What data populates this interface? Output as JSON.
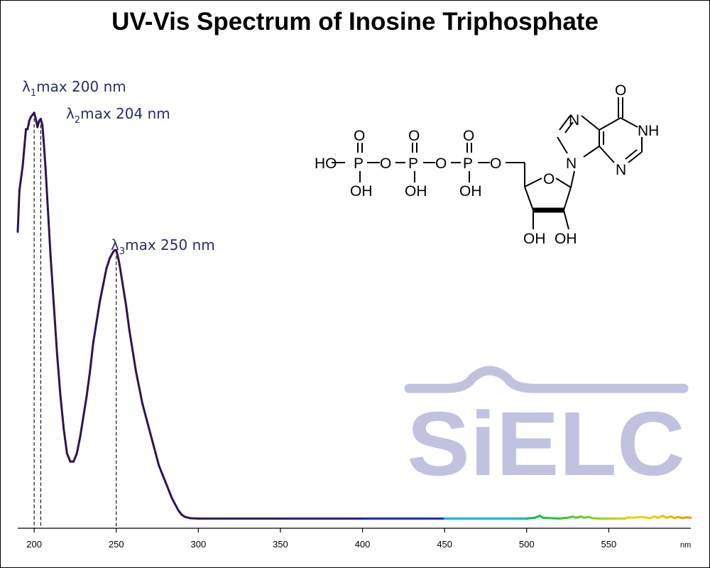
{
  "chart_data": {
    "type": "line",
    "title": "UV-Vis Spectrum of Inosine Triphosphate",
    "x_unit": "nm",
    "xlim": [
      190,
      600
    ],
    "ylim": [
      0,
      1.0
    ],
    "x_ticks": [
      200,
      250,
      300,
      350,
      400,
      450,
      500,
      550
    ],
    "grid": false,
    "color_gradient": "wavelength-rainbow",
    "series": [
      {
        "x": [
          190,
          191,
          193,
          195,
          196,
          197,
          198,
          199,
          200,
          201,
          202,
          203,
          204,
          205,
          206,
          207,
          208,
          210,
          212,
          214,
          216,
          218,
          220,
          222,
          224,
          226,
          228,
          230,
          232,
          234,
          236,
          238,
          240,
          242,
          244,
          246,
          248,
          249,
          250,
          251,
          252,
          254,
          256,
          258,
          260,
          262,
          264,
          266,
          268,
          270,
          272,
          274,
          276,
          278,
          280,
          282,
          284,
          286,
          288,
          290,
          292,
          295,
          300,
          350,
          400,
          450,
          500,
          505,
          508,
          510,
          520,
          525,
          528,
          530,
          533,
          535,
          538,
          540,
          545,
          550,
          555,
          560,
          562,
          565,
          570,
          575,
          578,
          580,
          583,
          585,
          588,
          590,
          592,
          595,
          597,
          600
        ],
        "y": [
          0.7,
          0.8,
          0.86,
          0.95,
          0.95,
          0.97,
          0.98,
          0.985,
          0.99,
          0.975,
          0.955,
          0.97,
          0.975,
          0.96,
          0.91,
          0.85,
          0.78,
          0.64,
          0.52,
          0.4,
          0.3,
          0.22,
          0.16,
          0.14,
          0.14,
          0.16,
          0.2,
          0.25,
          0.3,
          0.36,
          0.43,
          0.48,
          0.53,
          0.57,
          0.61,
          0.635,
          0.65,
          0.655,
          0.655,
          0.64,
          0.62,
          0.57,
          0.52,
          0.46,
          0.41,
          0.36,
          0.32,
          0.28,
          0.25,
          0.22,
          0.19,
          0.16,
          0.13,
          0.11,
          0.09,
          0.07,
          0.05,
          0.035,
          0.02,
          0.01,
          0.005,
          0.002,
          0.001,
          0.001,
          0.001,
          0.001,
          0.001,
          0.003,
          0.008,
          0.003,
          0.001,
          0.003,
          0.006,
          0.003,
          0.006,
          0.003,
          0.005,
          0.002,
          0.001,
          0.001,
          0.001,
          0.001,
          0.004,
          0.003,
          0.005,
          0.002,
          0.006,
          0.003,
          0.008,
          0.003,
          0.006,
          0.002,
          0.005,
          0.002,
          0.004,
          0.003
        ]
      }
    ],
    "annotations": [
      {
        "symbol": "λ",
        "sub": "1",
        "text": "max  200 nm",
        "x": 200
      },
      {
        "symbol": "λ",
        "sub": "2",
        "text": "max  204 nm",
        "x": 204
      },
      {
        "symbol": "λ",
        "sub": "3",
        "text": "max  250 nm",
        "x": 250
      }
    ]
  },
  "structure_labels": {
    "ho": "HO",
    "p": "P",
    "o": "O",
    "oh": "OH",
    "nh": "NH",
    "n": "N"
  },
  "watermark": {
    "text": "SiELC",
    "color": "#c0c2df"
  },
  "colors": {
    "peak_label": "#2a2d64",
    "uv_line": "#2d1450"
  }
}
